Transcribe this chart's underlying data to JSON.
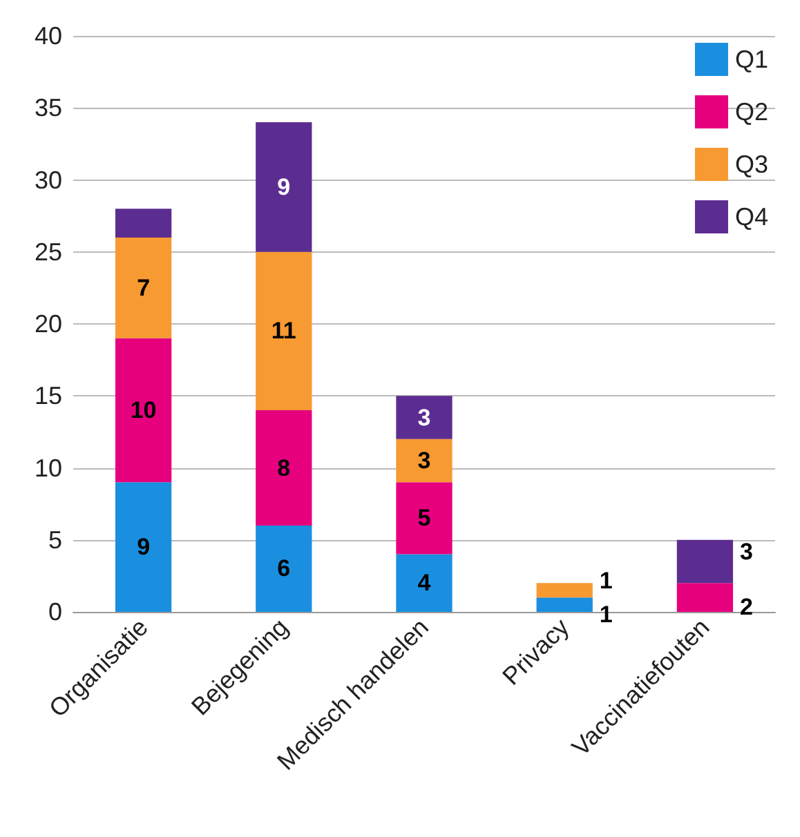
{
  "chart_data": {
    "type": "bar",
    "stacked": true,
    "categories": [
      "Organisatie",
      "Bejegening",
      "Medisch handelen",
      "Privacy",
      "Vaccinatiefouten"
    ],
    "series": [
      {
        "name": "Q1",
        "color": "#1a8fe0",
        "values": [
          9,
          6,
          4,
          1,
          null
        ],
        "value_labels": [
          "9",
          "6",
          "4",
          "1",
          null
        ]
      },
      {
        "name": "Q2",
        "color": "#e6007e",
        "values": [
          10,
          8,
          5,
          null,
          2
        ],
        "value_labels": [
          "10",
          "8",
          "5",
          null,
          "2"
        ]
      },
      {
        "name": "Q3",
        "color": "#f79a32",
        "values": [
          7,
          11,
          3,
          1,
          null
        ],
        "value_labels": [
          "7",
          "11",
          "3",
          "1",
          null
        ]
      },
      {
        "name": "Q4",
        "color": "#5c2d91",
        "values": [
          2,
          9,
          3,
          null,
          3
        ],
        "value_labels": [
          null,
          "9",
          "3",
          null,
          "3"
        ]
      }
    ],
    "ylim": [
      0,
      40
    ],
    "yticks": [
      0,
      5,
      10,
      15,
      20,
      25,
      30,
      35,
      40
    ],
    "grid": "y",
    "legend": "top right"
  }
}
